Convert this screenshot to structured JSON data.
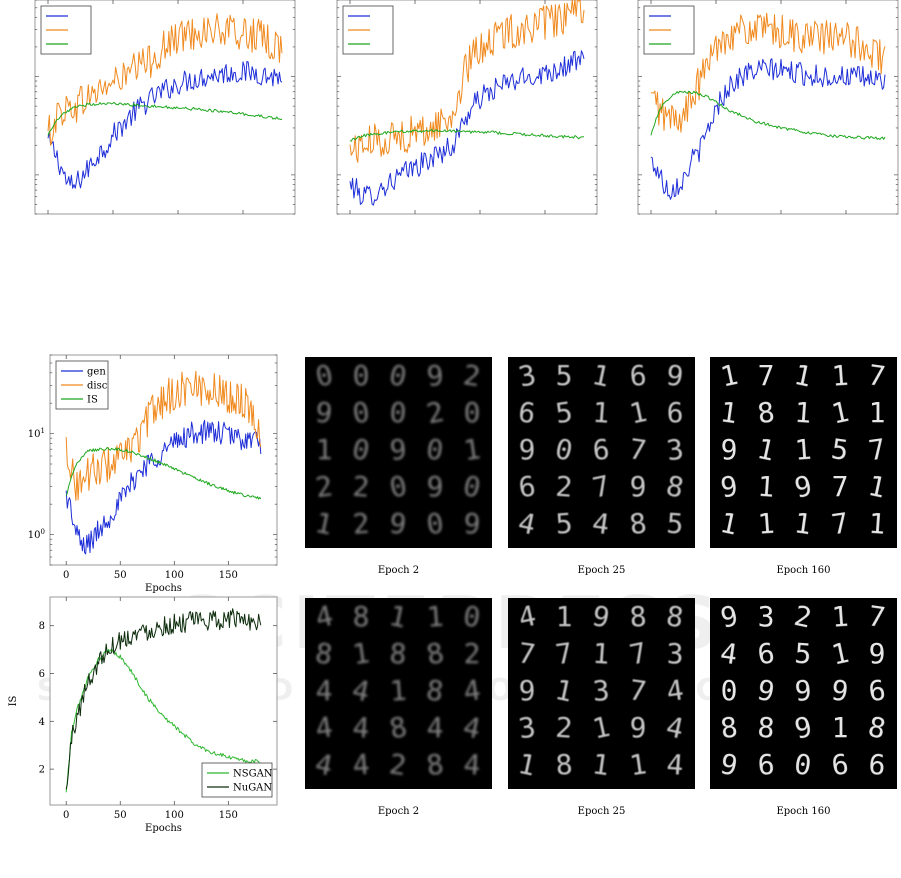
{
  "colors": {
    "gen": "#1f2fd8",
    "disc": "#f08a1f",
    "is": "#1ea81e",
    "nsgan": "#2fb82f",
    "nugan": "#0d2d0d",
    "panel_bg": "#000000",
    "digit": "#e6e6e6"
  },
  "watermark": {
    "line1": "SCITEPRESS",
    "line2": "SCIENCE AND TECHNOLOGY PUBLICATIONS"
  },
  "chart_data": [
    {
      "type": "line",
      "id": "top-left",
      "log_y": true,
      "xlim": [
        -10,
        190
      ],
      "ylim": [
        0.4,
        60
      ],
      "legend": {
        "placement": "top-left",
        "entries": []
      },
      "x_ticks": [
        0,
        50,
        100,
        150
      ],
      "x_tick_labels": [],
      "y_ticks": [
        1,
        10
      ],
      "y_tick_labels": [],
      "xlabel": "",
      "ylabel": "",
      "series": [
        {
          "key": "gen",
          "x": [
            0,
            10,
            15,
            20,
            30,
            45,
            60,
            80,
            100,
            120,
            140,
            160,
            170,
            180
          ],
          "y": [
            2.2,
            1.2,
            0.8,
            0.75,
            1.1,
            2.0,
            3.5,
            6.0,
            8.5,
            10,
            11,
            11,
            10,
            10
          ]
        },
        {
          "key": "disc",
          "x": [
            0,
            5,
            10,
            20,
            30,
            45,
            60,
            80,
            100,
            120,
            140,
            160,
            170,
            180
          ],
          "y": [
            2.5,
            3.5,
            4.5,
            5,
            6,
            8,
            10,
            15,
            25,
            30,
            28,
            26,
            22,
            20
          ]
        },
        {
          "key": "is",
          "x": [
            0,
            10,
            20,
            30,
            40,
            50,
            60,
            80,
            100,
            120,
            140,
            160,
            180
          ],
          "y": [
            2.5,
            4,
            4.8,
            5.2,
            5.3,
            5.3,
            5.2,
            5.0,
            4.8,
            4.6,
            4.3,
            4.0,
            3.7
          ]
        }
      ]
    },
    {
      "type": "line",
      "id": "top-middle",
      "log_y": true,
      "xlim": [
        -10,
        190
      ],
      "ylim": [
        0.4,
        60
      ],
      "legend": {
        "placement": "top-left",
        "entries": []
      },
      "x_ticks": [
        0,
        50,
        100,
        150
      ],
      "x_tick_labels": [],
      "y_ticks": [
        1,
        10
      ],
      "y_tick_labels": [],
      "xlabel": "",
      "ylabel": "",
      "series": [
        {
          "key": "gen",
          "x": [
            0,
            10,
            20,
            40,
            60,
            80,
            90,
            100,
            120,
            140,
            160,
            180
          ],
          "y": [
            0.8,
            0.6,
            0.65,
            1.0,
            1.4,
            2.0,
            4.0,
            6.0,
            8.5,
            10,
            12,
            15
          ]
        },
        {
          "key": "disc",
          "x": [
            0,
            10,
            20,
            40,
            60,
            80,
            90,
            100,
            120,
            140,
            160,
            180
          ],
          "y": [
            1.8,
            2.0,
            2.2,
            2.5,
            2.8,
            4,
            12,
            20,
            28,
            32,
            38,
            44
          ]
        },
        {
          "key": "is",
          "x": [
            0,
            10,
            30,
            50,
            70,
            90,
            110,
            130,
            150,
            180
          ],
          "y": [
            2.2,
            2.5,
            2.7,
            2.8,
            2.8,
            2.75,
            2.7,
            2.6,
            2.5,
            2.4
          ]
        }
      ]
    },
    {
      "type": "line",
      "id": "top-right",
      "log_y": true,
      "xlim": [
        -10,
        190
      ],
      "ylim": [
        0.4,
        60
      ],
      "legend": {
        "placement": "top-left",
        "entries": []
      },
      "x_ticks": [
        0,
        50,
        100,
        150
      ],
      "x_tick_labels": [],
      "y_ticks": [
        1,
        10
      ],
      "y_tick_labels": [],
      "xlabel": "",
      "ylabel": "",
      "series": [
        {
          "key": "gen",
          "x": [
            0,
            10,
            15,
            25,
            40,
            50,
            60,
            75,
            90,
            110,
            130,
            150,
            170,
            180
          ],
          "y": [
            1.4,
            0.8,
            0.7,
            0.9,
            2.0,
            4.5,
            8,
            11,
            12,
            11,
            10,
            10,
            9.5,
            9
          ]
        },
        {
          "key": "disc",
          "x": [
            0,
            10,
            20,
            30,
            40,
            50,
            60,
            80,
            100,
            120,
            140,
            160,
            170,
            180
          ],
          "y": [
            6,
            4,
            3.5,
            5,
            10,
            20,
            28,
            30,
            28,
            25,
            25,
            22,
            18,
            15
          ]
        },
        {
          "key": "is",
          "x": [
            0,
            10,
            20,
            30,
            40,
            50,
            60,
            80,
            100,
            120,
            140,
            160,
            180
          ],
          "y": [
            2.5,
            5.5,
            6.8,
            7.0,
            6.5,
            5.5,
            4.5,
            3.5,
            3.0,
            2.7,
            2.5,
            2.4,
            2.35
          ]
        }
      ]
    },
    {
      "type": "line",
      "id": "middle-left",
      "log_y": true,
      "xlim": [
        -15,
        195
      ],
      "ylim": [
        0.5,
        60
      ],
      "legend": {
        "placement": "top-left",
        "entries": [
          {
            "key": "gen",
            "label": "gen"
          },
          {
            "key": "disc",
            "label": "disc"
          },
          {
            "key": "is",
            "label": "IS"
          }
        ]
      },
      "x_ticks": [
        0,
        50,
        100,
        150
      ],
      "x_tick_labels": [
        "0",
        "50",
        "100",
        "150"
      ],
      "y_ticks": [
        1,
        10
      ],
      "y_tick_labels": [
        {
          "base": "10",
          "exp": "0"
        },
        {
          "base": "10",
          "exp": "1"
        }
      ],
      "xlabel": "Epochs",
      "ylabel": "",
      "series": [
        {
          "key": "gen",
          "x": [
            0,
            8,
            15,
            25,
            40,
            55,
            70,
            85,
            100,
            115,
            130,
            145,
            160,
            175,
            180
          ],
          "y": [
            2.5,
            1.1,
            0.75,
            0.9,
            1.5,
            2.5,
            4.5,
            6,
            8,
            10,
            10.5,
            10,
            9,
            8.5,
            8
          ]
        },
        {
          "key": "disc",
          "x": [
            0,
            5,
            10,
            20,
            30,
            40,
            55,
            70,
            85,
            100,
            115,
            130,
            145,
            160,
            170,
            180
          ],
          "y": [
            8,
            4,
            3,
            4,
            4.5,
            5,
            6,
            10,
            20,
            25,
            30,
            28,
            25,
            22,
            18,
            10
          ]
        },
        {
          "key": "is",
          "x": [
            0,
            10,
            20,
            30,
            40,
            50,
            60,
            75,
            90,
            105,
            120,
            135,
            150,
            165,
            180
          ],
          "y": [
            2.4,
            5,
            6.8,
            7.0,
            7.1,
            7.0,
            6.6,
            5.8,
            5.0,
            4.2,
            3.6,
            3.1,
            2.7,
            2.45,
            2.3
          ]
        }
      ]
    },
    {
      "type": "line",
      "id": "bottom-left",
      "log_y": false,
      "xlim": [
        -15,
        195
      ],
      "ylim": [
        0.5,
        9.2
      ],
      "legend": {
        "placement": "bottom-right",
        "entries": [
          {
            "key": "nsgan",
            "label": "NSGAN"
          },
          {
            "key": "nugan",
            "label": "NuGAN"
          }
        ]
      },
      "x_ticks": [
        0,
        50,
        100,
        150
      ],
      "x_tick_labels": [
        "0",
        "50",
        "100",
        "150"
      ],
      "y_ticks": [
        2,
        4,
        6,
        8
      ],
      "y_tick_labels": [
        "2",
        "4",
        "6",
        "8"
      ],
      "xlabel": "Epochs",
      "ylabel": "IS",
      "series": [
        {
          "key": "nsgan",
          "x": [
            0,
            5,
            10,
            20,
            30,
            40,
            50,
            60,
            75,
            90,
            105,
            120,
            135,
            150,
            165,
            180
          ],
          "y": [
            1.0,
            3.5,
            4.5,
            5.8,
            6.6,
            7.0,
            6.7,
            6.1,
            5.0,
            4.2,
            3.6,
            3.0,
            2.7,
            2.5,
            2.35,
            2.3
          ]
        },
        {
          "key": "nugan",
          "x": [
            0,
            5,
            10,
            20,
            30,
            40,
            50,
            60,
            75,
            90,
            105,
            120,
            135,
            150,
            165,
            180
          ],
          "y": [
            1.0,
            3.3,
            4.2,
            5.6,
            6.5,
            7.1,
            7.4,
            7.6,
            7.8,
            8.0,
            8.1,
            8.2,
            8.2,
            8.3,
            8.3,
            8.1
          ]
        }
      ]
    }
  ],
  "sample_grids": {
    "top": [
      {
        "caption": "Epoch 2",
        "rows": [
          [
            "0",
            "0",
            "0",
            "9",
            "2"
          ],
          [
            "9",
            "0",
            "0",
            "2",
            "0"
          ],
          [
            "1",
            "0",
            "9",
            "0",
            "1"
          ],
          [
            "2",
            "2",
            "0",
            "9",
            "0"
          ],
          [
            "1",
            "2",
            "9",
            "0",
            "9"
          ]
        ]
      },
      {
        "caption": "Epoch 25",
        "rows": [
          [
            "3",
            "5",
            "1",
            "6",
            "9"
          ],
          [
            "6",
            "5",
            "1",
            "1",
            "6"
          ],
          [
            "9",
            "0",
            "6",
            "7",
            "3"
          ],
          [
            "6",
            "2",
            "7",
            "9",
            "8"
          ],
          [
            "4",
            "5",
            "4",
            "8",
            "5"
          ]
        ]
      },
      {
        "caption": "Epoch 160",
        "rows": [
          [
            "1",
            "7",
            "1",
            "1",
            "7"
          ],
          [
            "1",
            "8",
            "1",
            "1",
            "1"
          ],
          [
            "9",
            "1",
            "1",
            "5",
            "7"
          ],
          [
            "9",
            "1",
            "9",
            "7",
            "1"
          ],
          [
            "1",
            "1",
            "1",
            "7",
            "1"
          ]
        ]
      }
    ],
    "bottom": [
      {
        "caption": "Epoch 2",
        "rows": [
          [
            "4",
            "8",
            "1",
            "1",
            "0"
          ],
          [
            "8",
            "1",
            "8",
            "8",
            "2"
          ],
          [
            "4",
            "4",
            "1",
            "8",
            "4"
          ],
          [
            "4",
            "4",
            "8",
            "4",
            "4"
          ],
          [
            "4",
            "4",
            "2",
            "8",
            "4"
          ]
        ]
      },
      {
        "caption": "Epoch 25",
        "rows": [
          [
            "4",
            "1",
            "9",
            "8",
            "8"
          ],
          [
            "7",
            "7",
            "1",
            "7",
            "3"
          ],
          [
            "9",
            "1",
            "3",
            "7",
            "4"
          ],
          [
            "3",
            "2",
            "1",
            "9",
            "4"
          ],
          [
            "1",
            "8",
            "1",
            "1",
            "4"
          ]
        ]
      },
      {
        "caption": "Epoch 160",
        "rows": [
          [
            "9",
            "3",
            "2",
            "1",
            "7"
          ],
          [
            "4",
            "6",
            "5",
            "1",
            "9"
          ],
          [
            "0",
            "9",
            "9",
            "9",
            "6"
          ],
          [
            "8",
            "8",
            "9",
            "1",
            "8"
          ],
          [
            "9",
            "6",
            "0",
            "6",
            "6"
          ]
        ]
      }
    ]
  }
}
